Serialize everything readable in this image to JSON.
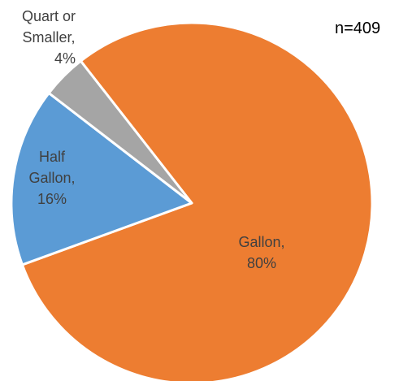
{
  "chart_data": {
    "type": "pie",
    "categories": [
      "Gallon,",
      "Half Gallon,",
      "Quart or Smaller,"
    ],
    "values": [
      80,
      16,
      4
    ],
    "value_labels": [
      "80%",
      "16%",
      "4%"
    ],
    "colors": [
      "#ED7D31",
      "#5B9BD5",
      "#A5A5A5"
    ],
    "annotation": "n=409"
  }
}
